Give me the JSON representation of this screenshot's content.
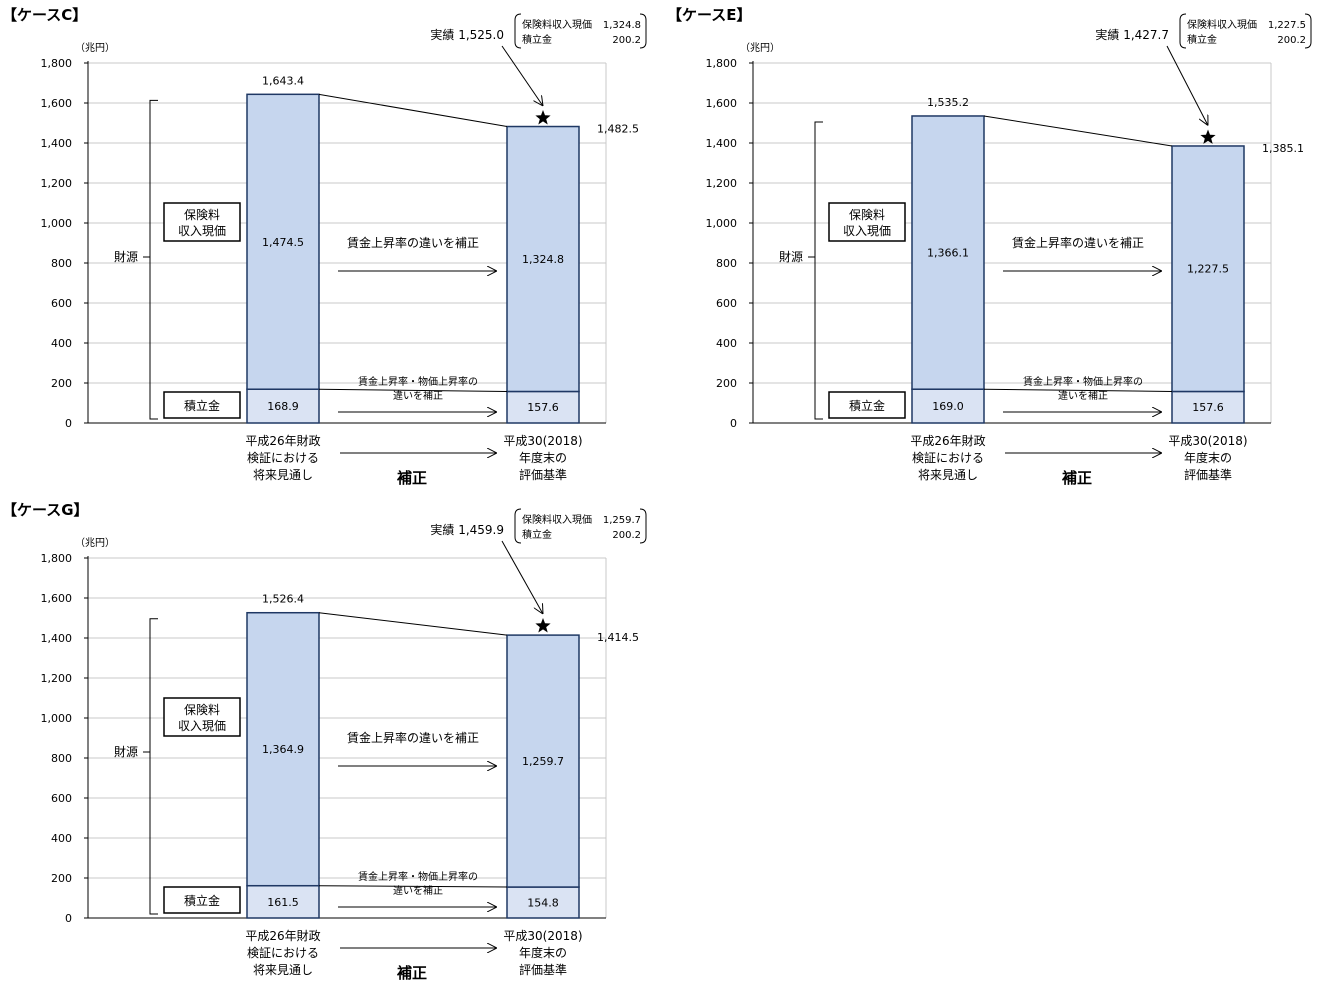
{
  "chart_data": [
    {
      "type": "bar",
      "stacked": true,
      "title": "【ケースC】",
      "unit": "（兆円）",
      "ylim": [
        0,
        1800
      ],
      "yticks": [
        0,
        200,
        400,
        600,
        800,
        1000,
        1200,
        1400,
        1600,
        1800
      ],
      "categories": [
        [
          "平成26年財政",
          "検証における",
          "将来見通し"
        ],
        [
          "平成30(2018)",
          "年度末の",
          "評価基準"
        ]
      ],
      "series": [
        {
          "name": "積立金",
          "values": [
            168.9,
            157.6
          ],
          "color": "#dae3f3"
        },
        {
          "name": "保険料収入現価",
          "values": [
            1474.5,
            1324.8
          ],
          "color": "#c6d6ee"
        }
      ],
      "totals": [
        1643.4,
        1482.5
      ],
      "totals_label": [
        "1,643.4",
        "1,482.5"
      ],
      "segment_labels": [
        [
          "168.9",
          "1,474.5"
        ],
        [
          "157.6",
          "1,324.8"
        ]
      ],
      "actual": {
        "value": 1525.0,
        "label": "実績 1,525.0",
        "breakdown": [
          [
            "保険料収入現価",
            "1,324.8"
          ],
          [
            "積立金",
            "200.2"
          ]
        ]
      },
      "annotations": {
        "source_label": "財源",
        "premium_box": [
          "保険料",
          "収入現価"
        ],
        "reserve_box": "積立金",
        "wage_note": "賃金上昇率の違いを補正",
        "price_note": [
          "賃金上昇率・物価上昇率の",
          "違いを補正"
        ],
        "correction": "補正"
      }
    },
    {
      "type": "bar",
      "stacked": true,
      "title": "【ケースE】",
      "unit": "（兆円）",
      "ylim": [
        0,
        1800
      ],
      "yticks": [
        0,
        200,
        400,
        600,
        800,
        1000,
        1200,
        1400,
        1600,
        1800
      ],
      "categories": [
        [
          "平成26年財政",
          "検証における",
          "将来見通し"
        ],
        [
          "平成30(2018)",
          "年度末の",
          "評価基準"
        ]
      ],
      "series": [
        {
          "name": "積立金",
          "values": [
            169.0,
            157.6
          ],
          "color": "#dae3f3"
        },
        {
          "name": "保険料収入現価",
          "values": [
            1366.1,
            1227.5
          ],
          "color": "#c6d6ee"
        }
      ],
      "totals": [
        1535.2,
        1385.1
      ],
      "totals_label": [
        "1,535.2",
        "1,385.1"
      ],
      "segment_labels": [
        [
          "169.0",
          "1,366.1"
        ],
        [
          "157.6",
          "1,227.5"
        ]
      ],
      "actual": {
        "value": 1427.7,
        "label": "実績 1,427.7",
        "breakdown": [
          [
            "保険料収入現価",
            "1,227.5"
          ],
          [
            "積立金",
            "200.2"
          ]
        ]
      },
      "annotations": {
        "source_label": "財源",
        "premium_box": [
          "保険料",
          "収入現価"
        ],
        "reserve_box": "積立金",
        "wage_note": "賃金上昇率の違いを補正",
        "price_note": [
          "賃金上昇率・物価上昇率の",
          "違いを補正"
        ],
        "correction": "補正"
      }
    },
    {
      "type": "bar",
      "stacked": true,
      "title": "【ケースG】",
      "unit": "（兆円）",
      "ylim": [
        0,
        1800
      ],
      "yticks": [
        0,
        200,
        400,
        600,
        800,
        1000,
        1200,
        1400,
        1600,
        1800
      ],
      "categories": [
        [
          "平成26年財政",
          "検証における",
          "将来見通し"
        ],
        [
          "平成30(2018)",
          "年度末の",
          "評価基準"
        ]
      ],
      "series": [
        {
          "name": "積立金",
          "values": [
            161.5,
            154.8
          ],
          "color": "#dae3f3"
        },
        {
          "name": "保険料収入現価",
          "values": [
            1364.9,
            1259.7
          ],
          "color": "#c6d6ee"
        }
      ],
      "totals": [
        1526.4,
        1414.5
      ],
      "totals_label": [
        "1,526.4",
        "1,414.5"
      ],
      "segment_labels": [
        [
          "161.5",
          "1,364.9"
        ],
        [
          "154.8",
          "1,259.7"
        ]
      ],
      "actual": {
        "value": 1459.9,
        "label": "実績 1,459.9",
        "breakdown": [
          [
            "保険料収入現価",
            "1,259.7"
          ],
          [
            "積立金",
            "200.2"
          ]
        ]
      },
      "annotations": {
        "source_label": "財源",
        "premium_box": [
          "保険料",
          "収入現価"
        ],
        "reserve_box": "積立金",
        "wage_note": "賃金上昇率の違いを補正",
        "price_note": [
          "賃金上昇率・物価上昇率の",
          "違いを補正"
        ],
        "correction": "補正"
      }
    }
  ]
}
